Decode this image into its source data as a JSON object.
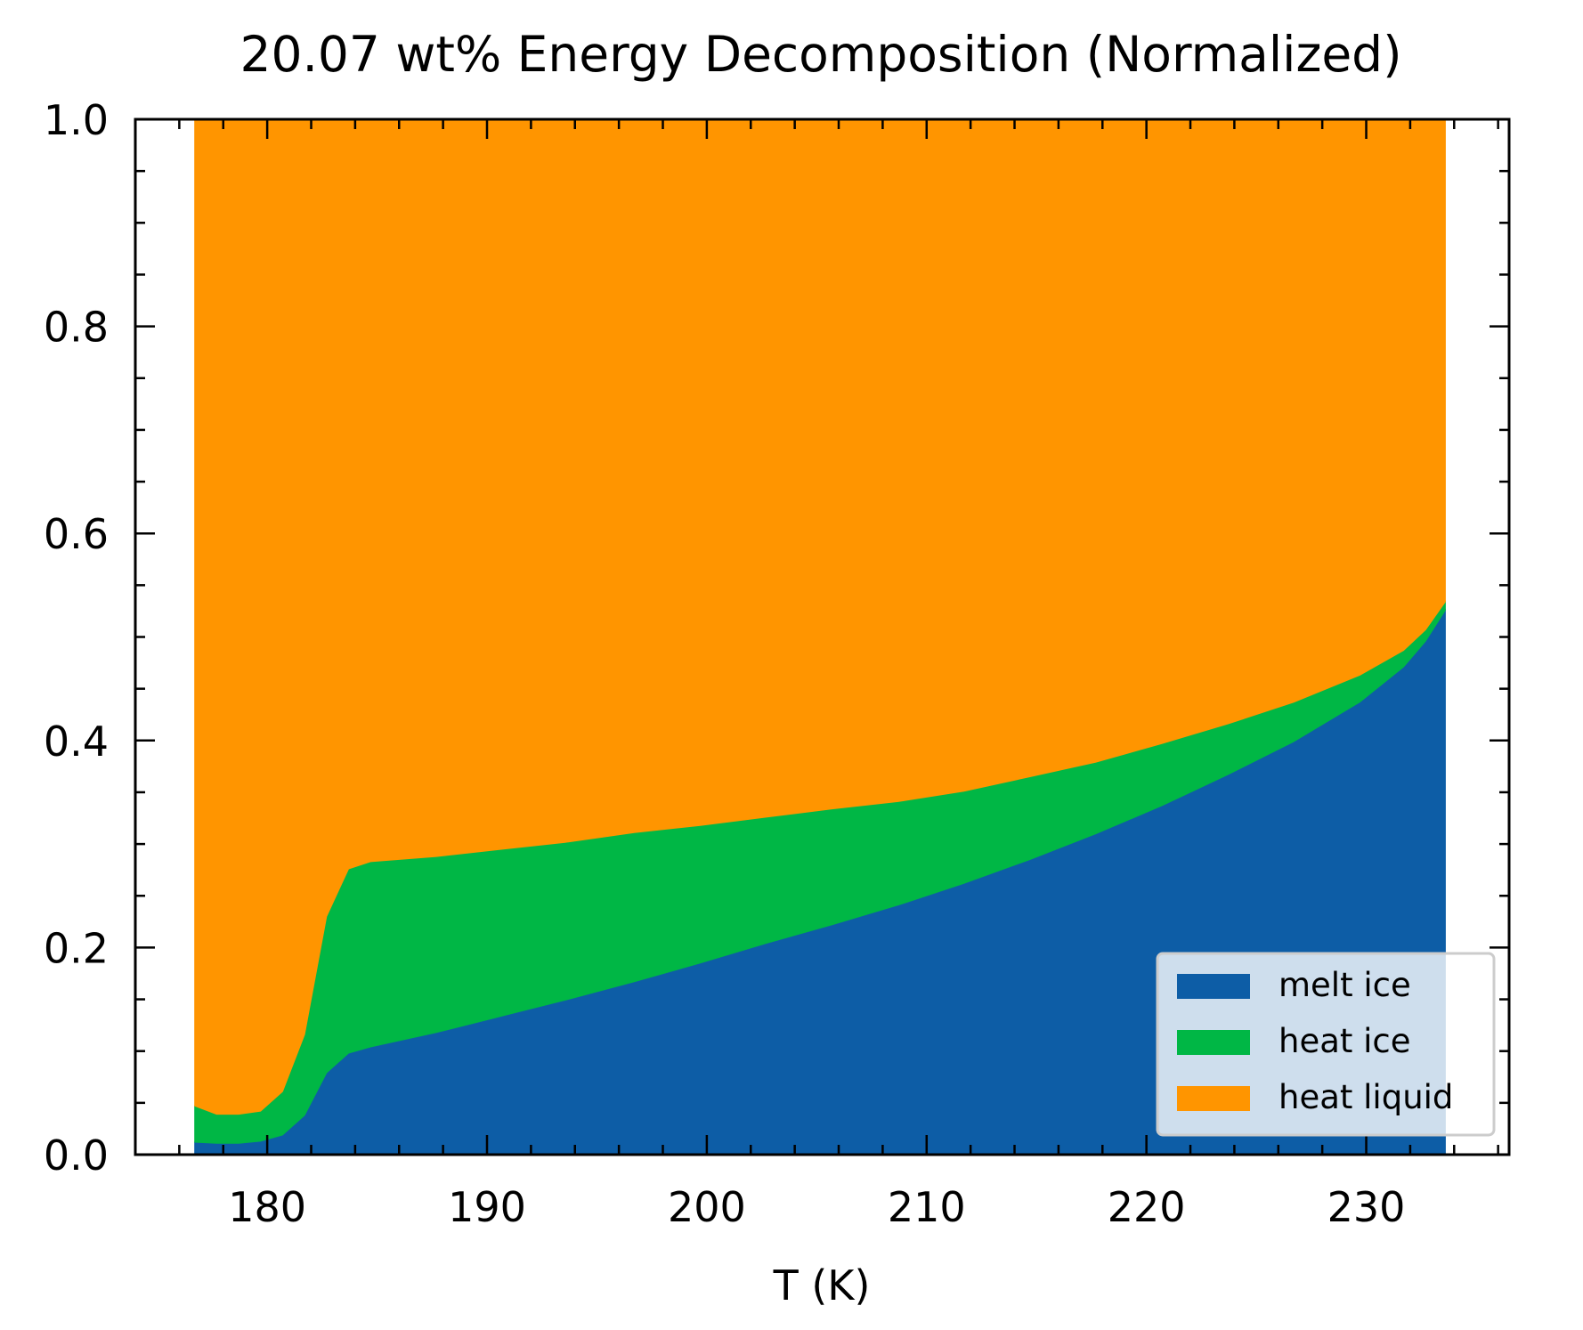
{
  "chart_data": {
    "type": "area",
    "stacked": true,
    "normalized": true,
    "title": "20.07 wt% Energy Decomposition (Normalized)",
    "xlabel": "T (K)",
    "ylabel": "",
    "xlim": [
      174,
      236.5
    ],
    "ylim": [
      0,
      1.0
    ],
    "xticks": [
      180,
      190,
      200,
      210,
      220,
      230
    ],
    "xtick_labels": [
      "180",
      "190",
      "200",
      "210",
      "220",
      "230"
    ],
    "yticks": [
      0.0,
      0.2,
      0.4,
      0.6,
      0.8,
      1.0
    ],
    "ytick_labels": [
      "0.0",
      "0.2",
      "0.4",
      "0.6",
      "0.8",
      "1.0"
    ],
    "grid": false,
    "legend_position": "bottom-right",
    "x": [
      176.7,
      177.7,
      178.7,
      179.7,
      180.7,
      181.7,
      182.7,
      183.7,
      184.7,
      187.7,
      190.7,
      193.7,
      196.7,
      199.7,
      202.7,
      205.7,
      208.7,
      211.7,
      214.7,
      217.7,
      220.7,
      223.7,
      226.7,
      229.7,
      231.7,
      232.7,
      233.6
    ],
    "series": [
      {
        "name": "melt ice",
        "color": "#0d5da6",
        "values": [
          0.012,
          0.011,
          0.011,
          0.013,
          0.019,
          0.038,
          0.079,
          0.098,
          0.104,
          0.118,
          0.134,
          0.15,
          0.167,
          0.185,
          0.204,
          0.222,
          0.241,
          0.262,
          0.285,
          0.31,
          0.337,
          0.367,
          0.399,
          0.437,
          0.471,
          0.496,
          0.526
        ]
      },
      {
        "name": "heat ice",
        "color": "#00b745",
        "values": [
          0.035,
          0.028,
          0.028,
          0.029,
          0.042,
          0.078,
          0.151,
          0.178,
          0.179,
          0.17,
          0.161,
          0.152,
          0.144,
          0.133,
          0.122,
          0.112,
          0.1,
          0.089,
          0.08,
          0.069,
          0.06,
          0.049,
          0.038,
          0.026,
          0.016,
          0.011,
          0.008
        ]
      },
      {
        "name": "heat liquid",
        "color": "#ff9500",
        "values": [
          0.953,
          0.961,
          0.961,
          0.958,
          0.939,
          0.884,
          0.77,
          0.724,
          0.717,
          0.712,
          0.705,
          0.698,
          0.689,
          0.682,
          0.674,
          0.666,
          0.659,
          0.649,
          0.635,
          0.621,
          0.603,
          0.584,
          0.563,
          0.537,
          0.513,
          0.493,
          0.466
        ]
      }
    ]
  }
}
